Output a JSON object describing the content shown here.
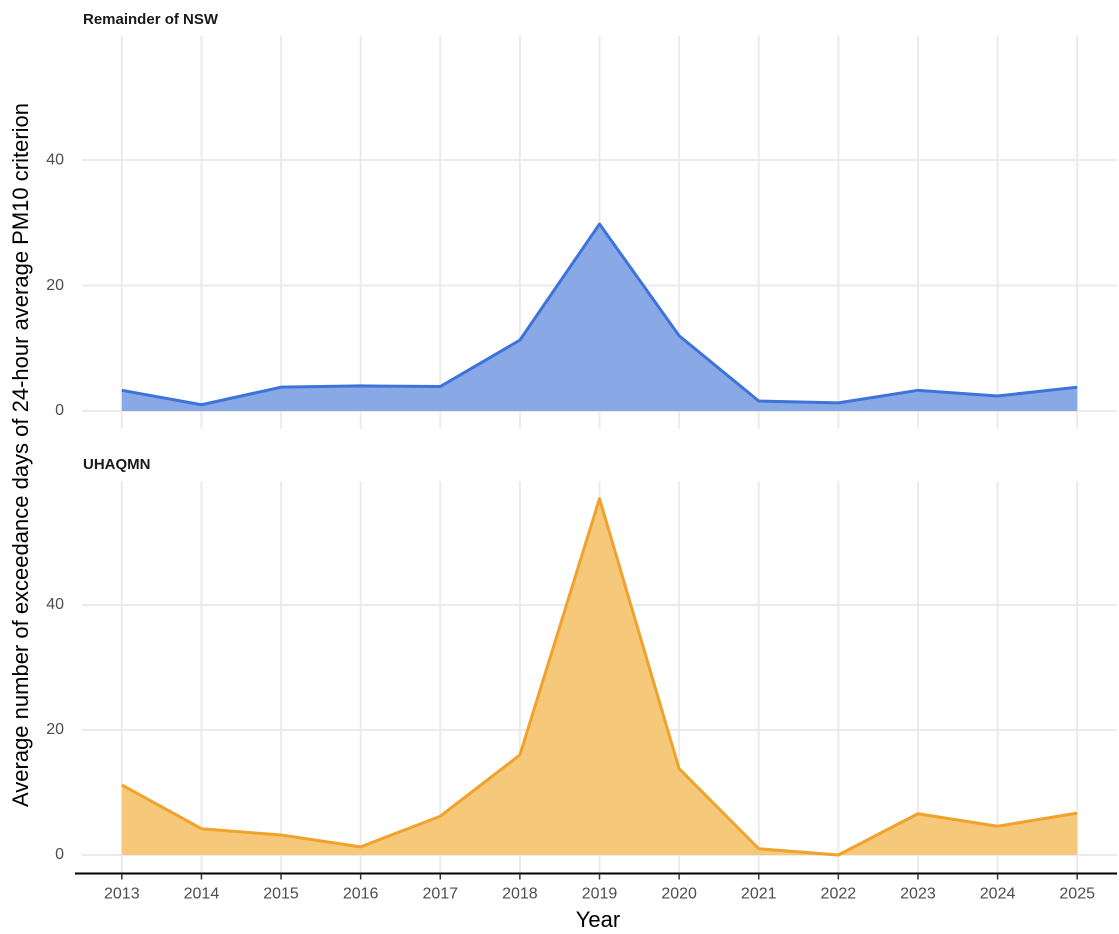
{
  "xlabel": "Year",
  "ylabel": "Average number of exceedance days of 24-hour average PM10 criterion",
  "chart_data": [
    {
      "type": "area",
      "title": "Remainder of NSW",
      "color": "#3d74d9",
      "fill": "#88a9e6",
      "x": [
        2013,
        2014,
        2015,
        2016,
        2017,
        2018,
        2019,
        2020,
        2021,
        2022,
        2023,
        2024,
        2025
      ],
      "values": [
        3.3,
        1.0,
        3.8,
        4.0,
        3.9,
        11.3,
        29.8,
        12.0,
        1.6,
        1.3,
        3.3,
        2.4,
        3.8
      ],
      "xlim": [
        2012.5,
        2025.5
      ],
      "ylim": [
        -2.8,
        59.8
      ],
      "yticks": [
        0,
        20,
        40
      ],
      "grid": true
    },
    {
      "type": "area",
      "title": "UHAQMN",
      "color": "#f0a22c",
      "fill": "#f6c87a",
      "x": [
        2013,
        2014,
        2015,
        2016,
        2017,
        2018,
        2019,
        2020,
        2021,
        2022,
        2023,
        2024,
        2025
      ],
      "values": [
        11.2,
        4.2,
        3.2,
        1.3,
        6.2,
        16.0,
        57.0,
        13.8,
        1.0,
        0.0,
        6.6,
        4.6,
        6.7
      ],
      "xlim": [
        2012.5,
        2025.5
      ],
      "ylim": [
        -2.8,
        59.8
      ],
      "yticks": [
        0,
        20,
        40
      ],
      "xticks": [
        2013,
        2014,
        2015,
        2016,
        2017,
        2018,
        2019,
        2020,
        2021,
        2022,
        2023,
        2024,
        2025
      ],
      "grid": true
    }
  ]
}
